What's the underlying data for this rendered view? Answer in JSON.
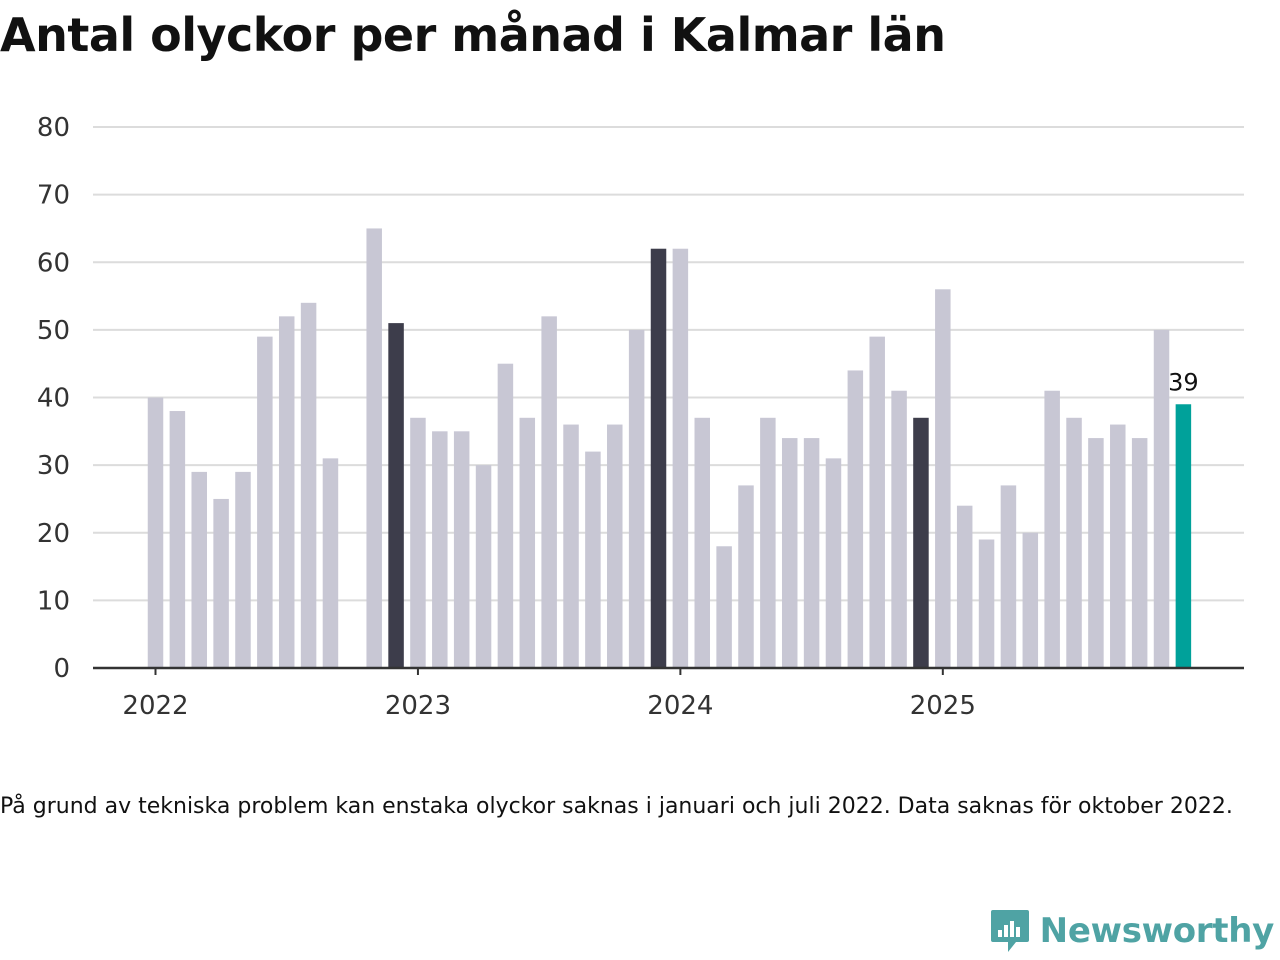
{
  "title": "Antal olyckor per månad i Kalmar län",
  "footnote": "På grund av tekniska problem kan enstaka olyckor saknas i januari och juli 2022. Data saknas för oktober 2022.",
  "brand": {
    "name": "Newsworthy",
    "icon": "newsworthy-logo-icon"
  },
  "colors": {
    "default": "#c8c7d4",
    "highlight": "#3d3d4b",
    "latest": "#00a19a",
    "grid": "#dcdcdc",
    "axis": "#333333",
    "brand": "#4fa3a4"
  },
  "chart_data": {
    "type": "bar",
    "title": "Antal olyckor per månad i Kalmar län",
    "xlabel": "",
    "ylabel": "",
    "ylim": [
      0,
      80
    ],
    "yticks": [
      0,
      10,
      20,
      30,
      40,
      50,
      60,
      70,
      80
    ],
    "xticks": [
      {
        "label": "2022",
        "month_index": 0
      },
      {
        "label": "2023",
        "month_index": 12
      },
      {
        "label": "2024",
        "month_index": 24
      },
      {
        "label": "2025",
        "month_index": 36
      }
    ],
    "grid": true,
    "series": [
      {
        "name": "Antal olyckor",
        "values": [
          40,
          38,
          29,
          25,
          29,
          49,
          52,
          54,
          31,
          null,
          65,
          51,
          37,
          35,
          35,
          30,
          45,
          37,
          52,
          36,
          32,
          36,
          50,
          62,
          62,
          37,
          18,
          27,
          37,
          34,
          34,
          31,
          44,
          49,
          41,
          37,
          56,
          24,
          19,
          27,
          20,
          41,
          37,
          34,
          36,
          34,
          50,
          39
        ]
      }
    ],
    "highlighted_indices": [
      11,
      23,
      35
    ],
    "latest_index": 47,
    "annotations": [
      {
        "index": 47,
        "text": "39"
      }
    ]
  }
}
